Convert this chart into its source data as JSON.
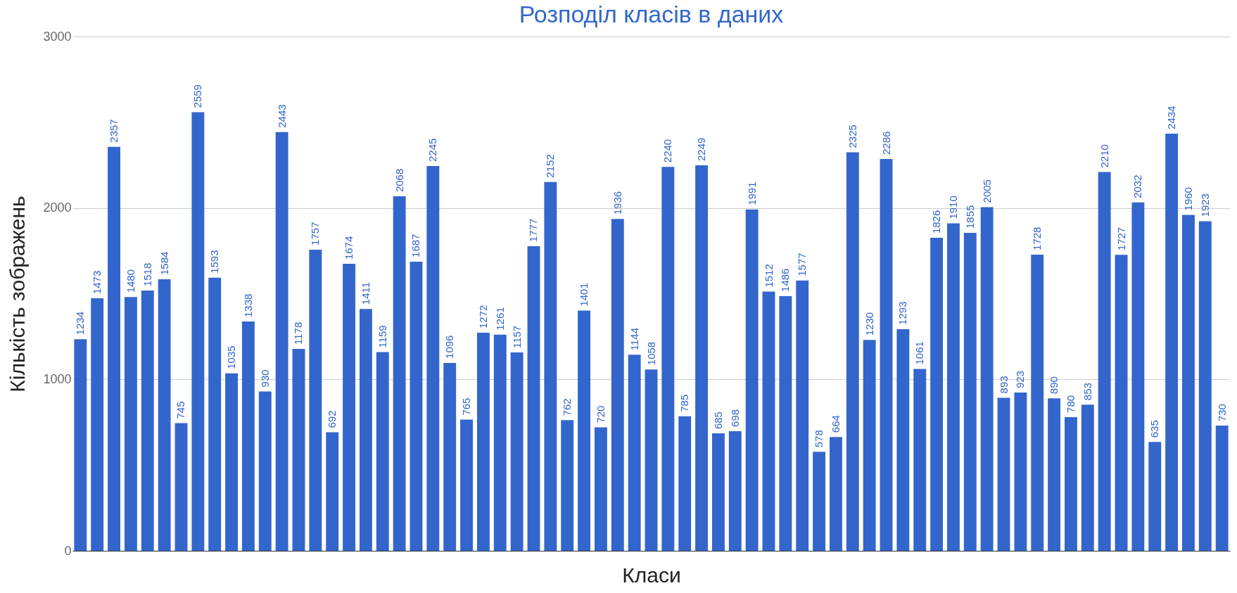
{
  "chart_data": {
    "type": "bar",
    "title": "Розподіл класів в даних",
    "xlabel": "Класи",
    "ylabel": "Кількість зображень",
    "categories": [
      null,
      null,
      null,
      null,
      null,
      null,
      null,
      null,
      null,
      null,
      null,
      null,
      null,
      null,
      null,
      null,
      null,
      null,
      null,
      null,
      null,
      null,
      null,
      null,
      null,
      null,
      null,
      null,
      null,
      null,
      null,
      null,
      null,
      null,
      null,
      null,
      null,
      null,
      null,
      null,
      null,
      null,
      null,
      null,
      null,
      null,
      null,
      null,
      null,
      null,
      null,
      null,
      null,
      null,
      null,
      null,
      null,
      null,
      null,
      null,
      null,
      null,
      null,
      null,
      null,
      null,
      null,
      null,
      null
    ],
    "values": [
      1234,
      1473,
      2357,
      1480,
      1518,
      1584,
      745,
      2559,
      1593,
      1035,
      1338,
      930,
      2443,
      1178,
      1757,
      692,
      1674,
      1411,
      1159,
      2068,
      1687,
      2245,
      1096,
      765,
      1272,
      1261,
      1157,
      1777,
      2152,
      762,
      1401,
      720,
      1936,
      1144,
      1058,
      2240,
      785,
      2249,
      685,
      698,
      1991,
      1512,
      1486,
      1577,
      578,
      664,
      2325,
      1230,
      2286,
      1293,
      1061,
      1826,
      1910,
      1855,
      2005,
      893,
      923,
      1728,
      890,
      780,
      853,
      2210,
      1727,
      2032,
      635,
      2434,
      1960,
      1923,
      730
    ],
    "color": "#3366cc",
    "ylim": [
      0,
      3000
    ],
    "yticks": [
      0,
      1000,
      2000,
      3000
    ],
    "grid": "y",
    "tick_labels": "y",
    "data_labels": true
  }
}
